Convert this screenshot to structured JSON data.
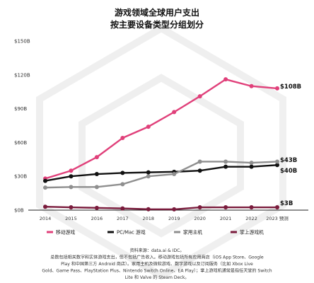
{
  "chart_data": {
    "type": "line",
    "title": "游戏领域全球用户支出",
    "subtitle": "按主要设备类型分组划分",
    "x": [
      "2014",
      "2015",
      "2016",
      "2017",
      "2018",
      "2019",
      "2020",
      "2021",
      "2022",
      "2023 预测"
    ],
    "y_ticks": [
      "$0B",
      "$30B",
      "$60B",
      "$90B",
      "$120B",
      "$150B"
    ],
    "ylim": [
      0,
      150
    ],
    "grid": false,
    "legend_position": "bottom",
    "series": [
      {
        "name": "移动游戏",
        "color": "#e0407a",
        "values": [
          28,
          35,
          47,
          64,
          74,
          87,
          101,
          116,
          110,
          108
        ],
        "end_label": "$108B"
      },
      {
        "name": "PC/Mac 游戏",
        "color": "#111111",
        "values": [
          26,
          30,
          32,
          33,
          33.5,
          34,
          35,
          38.5,
          38.5,
          40
        ],
        "end_label": "$40B"
      },
      {
        "name": "家用主机",
        "color": "#8f8f8f",
        "values": [
          20,
          20.5,
          20.5,
          23,
          30,
          32,
          43,
          43,
          42,
          43
        ],
        "end_label": "$43B"
      },
      {
        "name": "掌上游戏机",
        "color": "#7a1b3c",
        "values": [
          3,
          2.5,
          2,
          1.5,
          0.8,
          0.7,
          2.5,
          2.5,
          2.5,
          2.5
        ],
        "end_label": "$3B"
      }
    ],
    "source_lines": [
      "资料来源：data.ai & IDC。",
      "总数包括相关数字和实体游戏支出，但不包括广告收入。移动游戏包括所有应用商店（iOS App Store、Google",
      "Play 和中国第三方 Android 商店）。家用主机及微软游戏、数字游戏以及订阅服务（比如 Xbox Live",
      "Gold、Game Pass、PlayStation Plus、Nintendo Switch Online、EA Play）；掌上游戏机通常是指任天堂的 Switch",
      "Lite 和 Valve 的 Steam Deck。"
    ]
  }
}
